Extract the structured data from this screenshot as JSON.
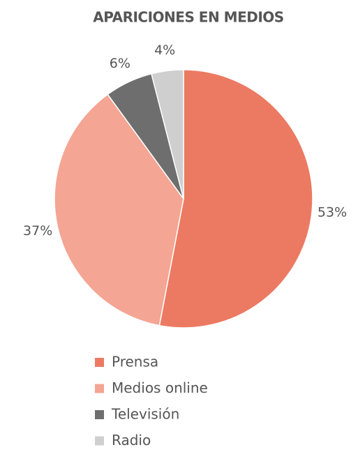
{
  "chart_data": {
    "type": "pie",
    "title": "APARICIONES EN MEDIOS",
    "categories": [
      "Prensa",
      "Medios online",
      "Televisión",
      "Radio"
    ],
    "values": [
      53,
      37,
      6,
      4
    ],
    "value_labels": [
      "53%",
      "37%",
      "6%",
      "4%"
    ],
    "colors": [
      "#ec7a62",
      "#f4a593",
      "#6e6e6e",
      "#cfcfcf"
    ],
    "legend": "bottom"
  }
}
